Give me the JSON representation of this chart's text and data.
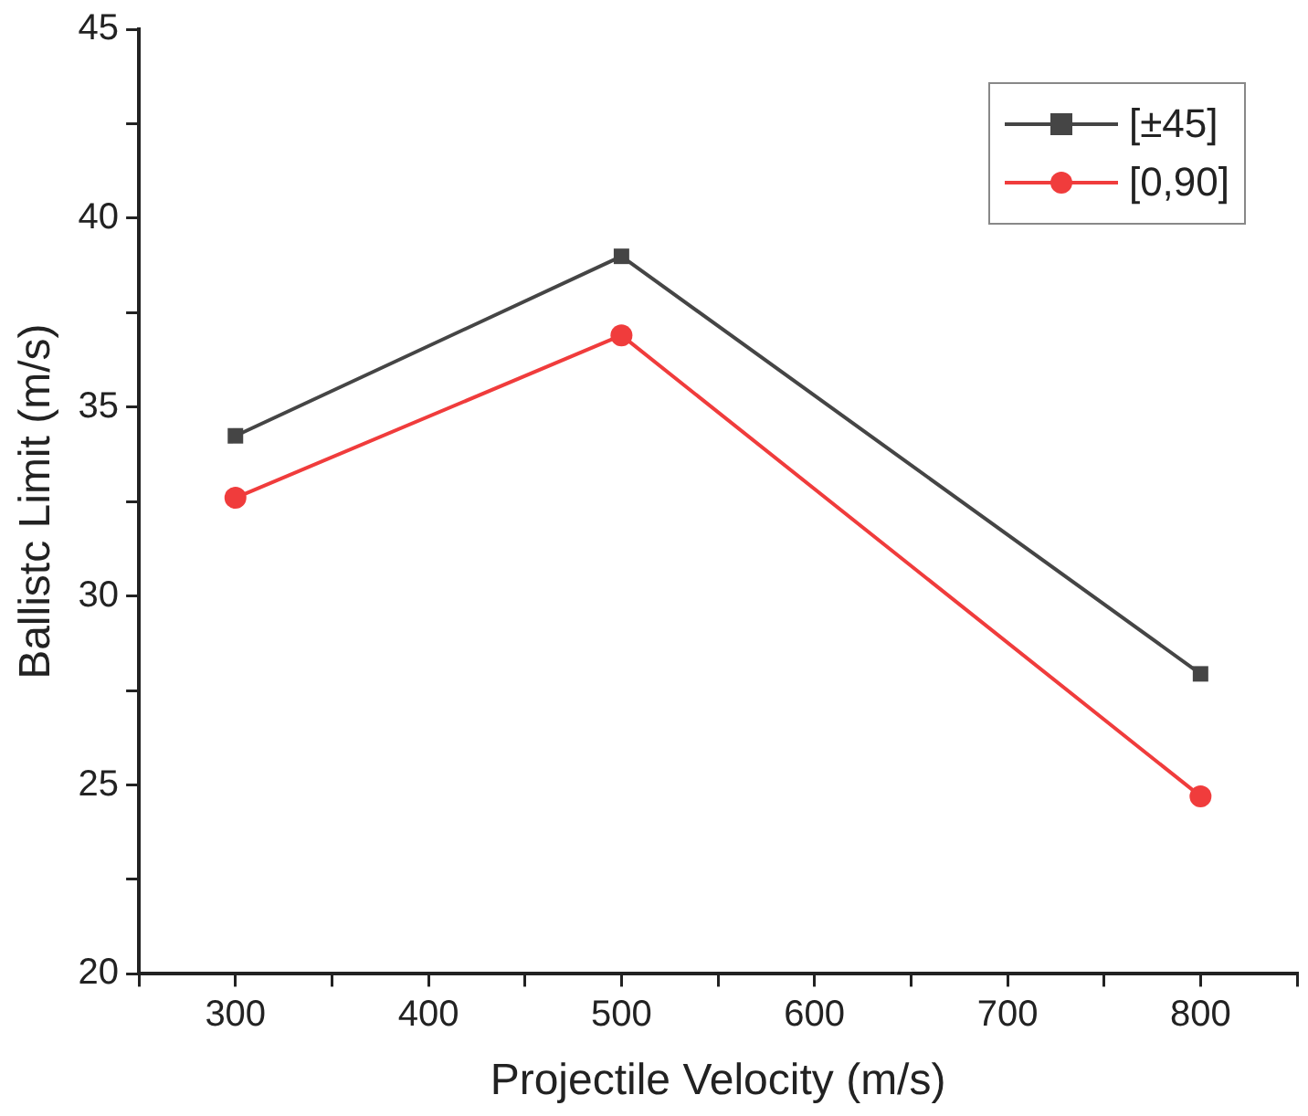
{
  "chart_data": {
    "type": "line",
    "xlabel": "Projectile Velocity (m/s)",
    "ylabel": "Ballistc Limit (m/s)",
    "x": [
      300,
      500,
      800
    ],
    "series": [
      {
        "name": "[±45]",
        "color": "#454545",
        "values": [
          34.24,
          38.99,
          27.94
        ],
        "marker": "square"
      },
      {
        "name": "[0,90]",
        "color": "#f03c3c",
        "values": [
          32.6,
          36.9,
          24.7
        ],
        "marker": "circle"
      }
    ],
    "xlim": [
      250,
      850
    ],
    "xticks": [
      {
        "value": 250,
        "label": null
      },
      300,
      {
        "value": 350,
        "label": null
      },
      400,
      {
        "value": 450,
        "label": null
      },
      500,
      {
        "value": 550,
        "label": null
      },
      600,
      {
        "value": 650,
        "label": null
      },
      700,
      {
        "value": 750,
        "label": null
      },
      800,
      {
        "value": 850,
        "label": null
      }
    ],
    "ylim": [
      20,
      45
    ],
    "yticks": [
      20,
      {
        "value": 22.5,
        "label": null
      },
      25,
      {
        "value": 27.5,
        "label": null
      },
      30,
      {
        "value": 32.5,
        "label": null
      },
      35,
      {
        "value": 37.5,
        "label": null
      },
      40,
      {
        "value": 42.5,
        "label": null
      },
      45
    ],
    "grid": false,
    "legend": "top right",
    "line_style": "solid"
  }
}
